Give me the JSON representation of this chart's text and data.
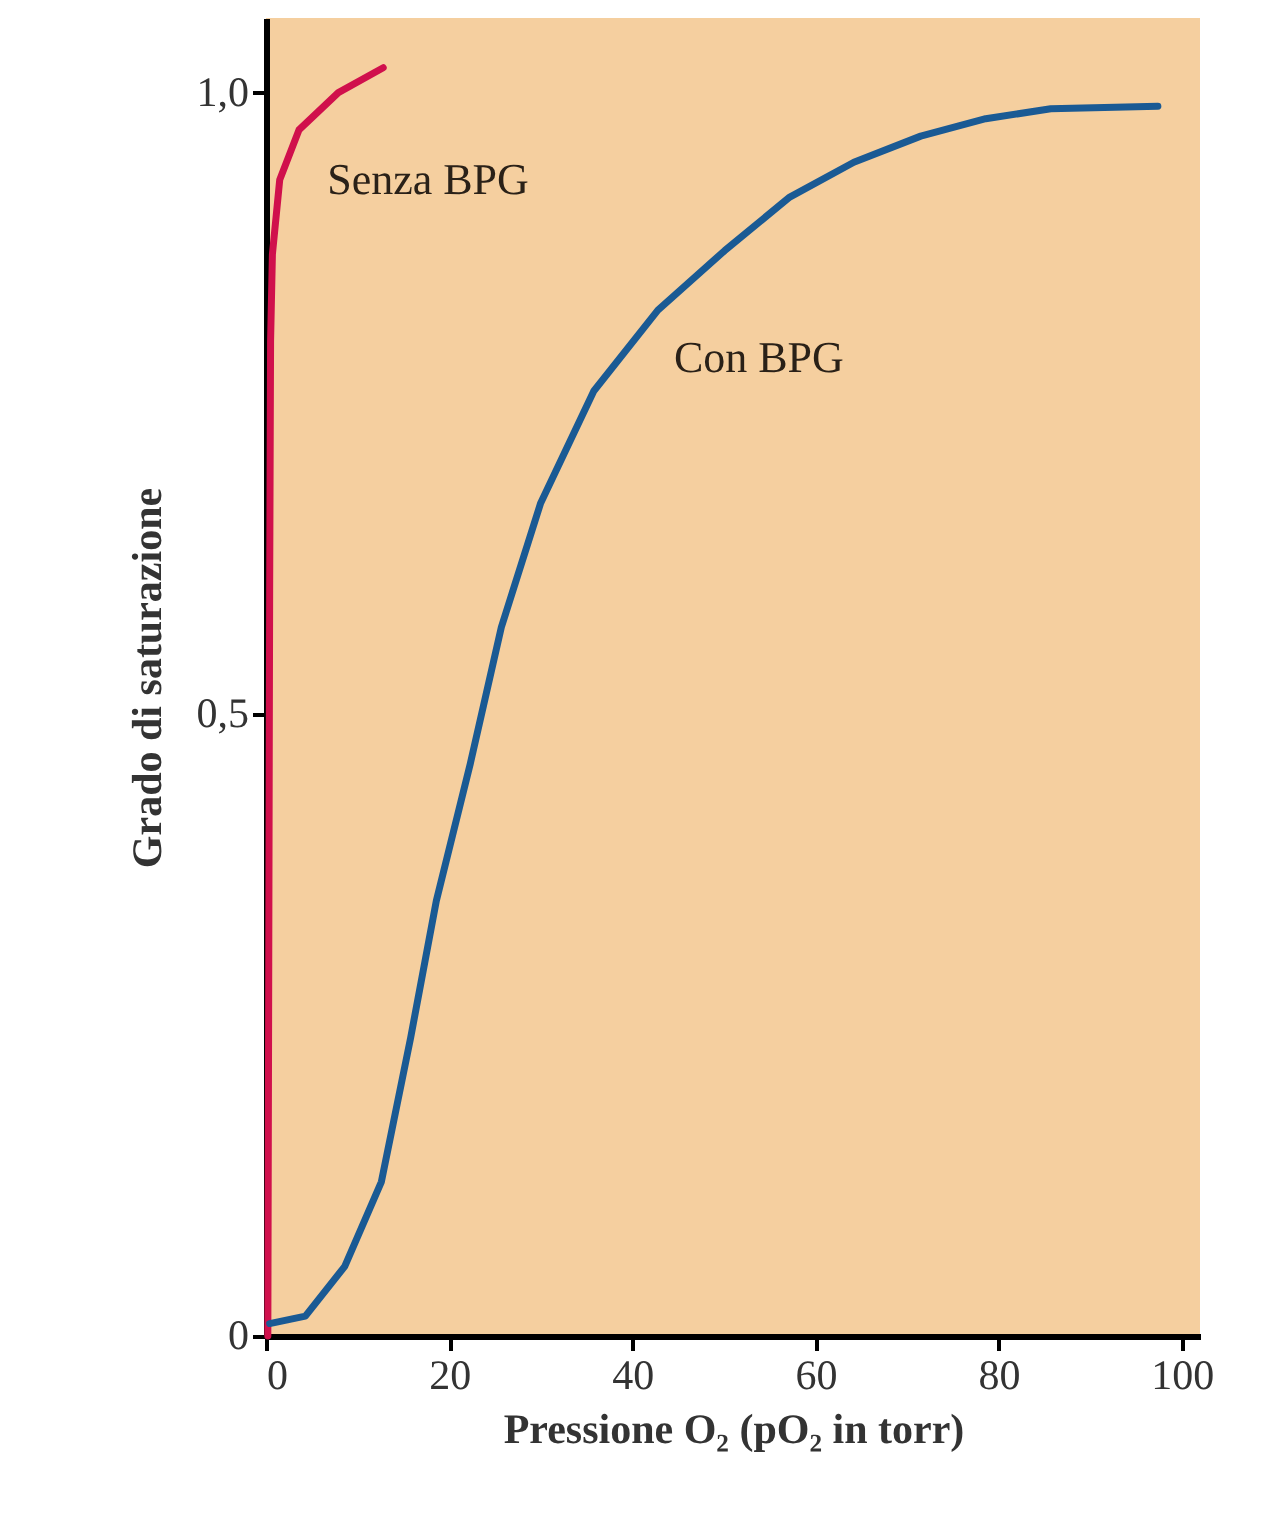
{
  "chart_data": {
    "type": "line",
    "xlabel": "Pressione O₂ (pO₂ in torr)",
    "ylabel": "Grado di saturazione",
    "xlim": [
      0,
      102
    ],
    "ylim": [
      0,
      1.06
    ],
    "xticks": [
      0,
      20,
      40,
      60,
      80,
      100
    ],
    "yticks": [
      {
        "value": 0,
        "label": "0"
      },
      {
        "value": 0.5,
        "label": "0,5"
      },
      {
        "value": 1,
        "label": "1,0"
      }
    ],
    "grid": false,
    "marker": "none",
    "line_style": "solid",
    "series": [
      {
        "name": "Senza BPG",
        "color": "#d0104c",
        "x": [
          0.2,
          0.3,
          0.4,
          0.5,
          0.7,
          1.5,
          3.6,
          7.9,
          12.8
        ],
        "values": [
          0,
          0.3,
          0.6,
          0.8,
          0.87,
          0.93,
          0.97,
          1.0,
          1.02
        ]
      },
      {
        "name": "Con BPG",
        "color": "#1a5a94",
        "x": [
          0.4,
          4.3,
          8.6,
          12.6,
          15.8,
          18.6,
          22.3,
          25.7,
          30,
          35.8,
          42.8,
          50.1,
          57.2,
          64.2,
          71.5,
          78.6,
          85.7,
          97.4
        ],
        "values": [
          0.01,
          0.016,
          0.056,
          0.124,
          0.24,
          0.35,
          0.46,
          0.57,
          0.67,
          0.76,
          0.825,
          0.873,
          0.916,
          0.944,
          0.965,
          0.979,
          0.987,
          0.989
        ]
      }
    ]
  }
}
